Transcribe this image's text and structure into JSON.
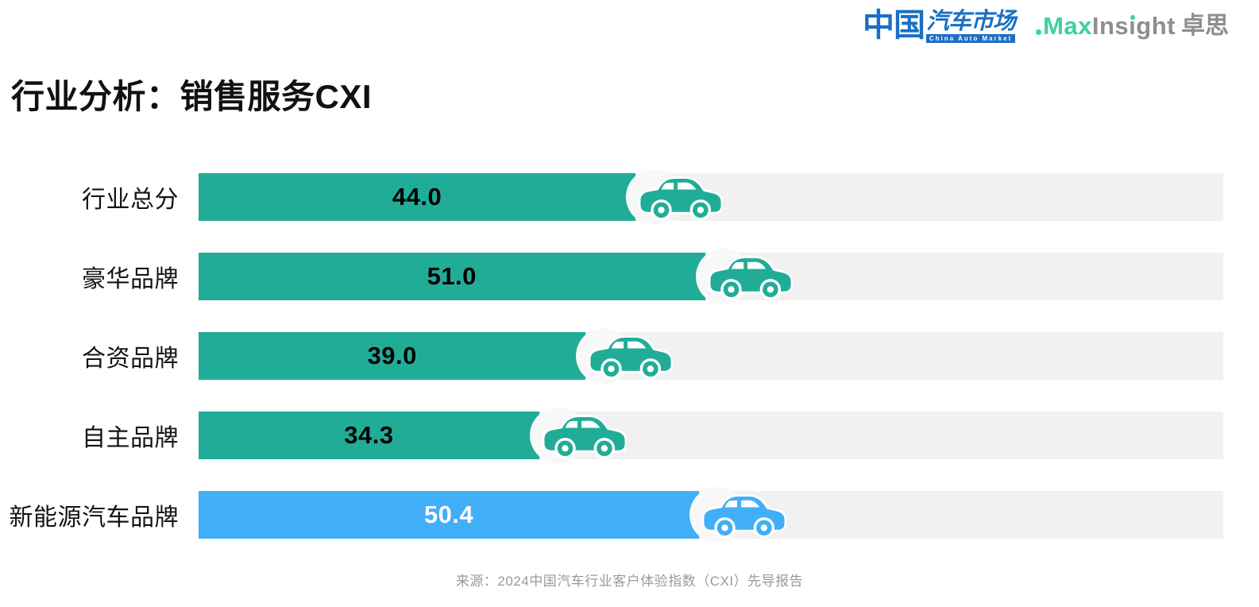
{
  "header": {
    "logo_cam": {
      "cn_main": "中国",
      "cn_sub": "汽车市场",
      "en": "China Auto Market",
      "color": "#1A6FC4"
    },
    "logo_maxinsight": {
      "max": "Max",
      "insight": "Insight",
      "insight_parts": [
        "Ins",
        "ı",
        "ght"
      ],
      "cn": "卓思",
      "green": "#3ED0A2",
      "gray": "#8E8E8E"
    }
  },
  "title": "行业分析：销售服务CXI",
  "chart_data": {
    "type": "bar",
    "orientation": "horizontal",
    "title": "行业分析：销售服务CXI",
    "categories": [
      "行业总分",
      "豪华品牌",
      "合资品牌",
      "自主品牌",
      "新能源汽车品牌"
    ],
    "values": [
      44.0,
      51.0,
      39.0,
      34.3,
      50.4
    ],
    "value_labels": [
      "44.0",
      "51.0",
      "39.0",
      "34.3",
      "50.4"
    ],
    "series": [
      {
        "name": "销售服务CXI",
        "values": [
          44.0,
          51.0,
          39.0,
          34.3,
          50.4
        ]
      }
    ],
    "bar_colors": [
      "#21AC98",
      "#21AC98",
      "#21AC98",
      "#21AC98",
      "#41AEF8"
    ],
    "value_text_colors": [
      "#000000",
      "#000000",
      "#000000",
      "#000000",
      "#ffffff"
    ],
    "track_color": "#F1F1F1",
    "marker_circle_color": "#F8F8F8",
    "marker_icon": "car-icon",
    "xlim": [
      0,
      103.2
    ],
    "grid": false,
    "legend": false,
    "xlabel": "",
    "ylabel": ""
  },
  "footer": {
    "source": "来源：2024中国汽车行业客户体验指数（CXI）先导报告"
  }
}
